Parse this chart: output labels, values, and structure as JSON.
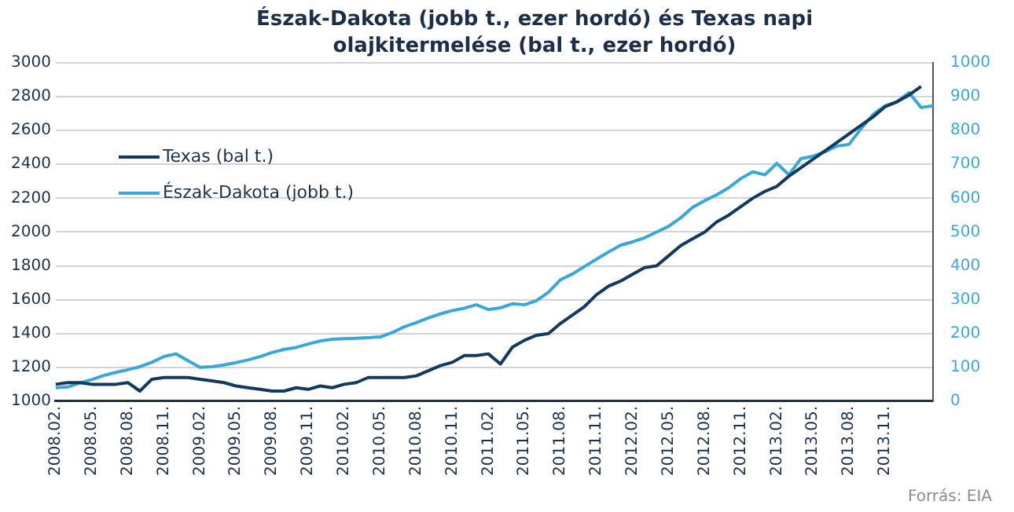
{
  "chart_data": {
    "type": "line",
    "title": "Észak-Dakota (jobb t., ezer hordó) és Texas napi olajkitermelése (bal t., ezer hordó)",
    "categories": [
      "2008.02.",
      null,
      null,
      "2008.05.",
      null,
      null,
      "2008.08.",
      null,
      null,
      "2008.11.",
      null,
      null,
      "2009.02.",
      null,
      null,
      "2009.05.",
      null,
      null,
      "2009.08.",
      null,
      null,
      "2009.11.",
      null,
      null,
      "2010.02.",
      null,
      null,
      "2010.05.",
      null,
      null,
      "2010.08.",
      null,
      null,
      "2010.11.",
      null,
      null,
      "2011.02.",
      null,
      null,
      "2011.05.",
      null,
      null,
      "2011.08.",
      null,
      null,
      "2011.11.",
      null,
      null,
      "2012.02.",
      null,
      null,
      "2012.05.",
      null,
      null,
      "2012.08.",
      null,
      null,
      "2012.11.",
      null,
      null,
      "2013.02.",
      null,
      null,
      "2013.05.",
      null,
      null,
      "2013.08.",
      null,
      null,
      "2013.11.",
      null,
      null,
      null,
      null
    ],
    "series": [
      {
        "name": "Texas (bal t.)",
        "color": "#123a5e",
        "values": [
          1100,
          1110,
          1110,
          1100,
          1100,
          1100,
          1110,
          1060,
          1130,
          1140,
          1140,
          1140,
          1130,
          1120,
          1110,
          1090,
          1080,
          1070,
          1060,
          1060,
          1080,
          1070,
          1090,
          1080,
          1100,
          1110,
          1140,
          1140,
          1140,
          1140,
          1150,
          1180,
          1210,
          1230,
          1270,
          1270,
          1280,
          1220,
          1320,
          1360,
          1390,
          1400,
          1460,
          1510,
          1560,
          1630,
          1680,
          1710,
          1750,
          1790,
          1800,
          1860,
          1920,
          1960,
          2000,
          2060,
          2100,
          2150,
          2200,
          2240,
          2270,
          2330,
          2380,
          2430,
          2480,
          2530,
          2580,
          2630,
          2680,
          2740,
          2770,
          2810,
          2860,
          null
        ]
      },
      {
        "name": "Észak-Dakota (jobb t.)",
        "color": "#3aa7d8",
        "axis": "y2",
        "values": [
          40,
          42,
          54,
          64,
          76,
          85,
          93,
          102,
          115,
          132,
          140,
          120,
          100,
          102,
          107,
          114,
          122,
          132,
          144,
          153,
          159,
          169,
          178,
          183,
          185,
          186,
          188,
          190,
          203,
          220,
          232,
          246,
          258,
          268,
          275,
          285,
          271,
          276,
          288,
          285,
          297,
          322,
          359,
          376,
          398,
          420,
          441,
          461,
          471,
          483,
          500,
          517,
          542,
          573,
          593,
          610,
          631,
          658,
          678,
          669,
          703,
          669,
          717,
          724,
          737,
          754,
          759,
          805,
          847,
          873,
          885,
          912,
          868,
          873
        ]
      }
    ],
    "ylim": [
      1000,
      3000
    ],
    "yticks": [
      1000,
      1200,
      1400,
      1600,
      1800,
      2000,
      2200,
      2400,
      2600,
      2800,
      3000
    ],
    "y2lim": [
      0,
      1000
    ],
    "y2ticks": [
      0,
      100,
      200,
      300,
      400,
      500,
      600,
      700,
      800,
      900,
      1000
    ],
    "grid": "y",
    "legend": "top left",
    "marker": "none",
    "line_style": "solid",
    "annotations": [
      "Forrás: EIA"
    ]
  }
}
